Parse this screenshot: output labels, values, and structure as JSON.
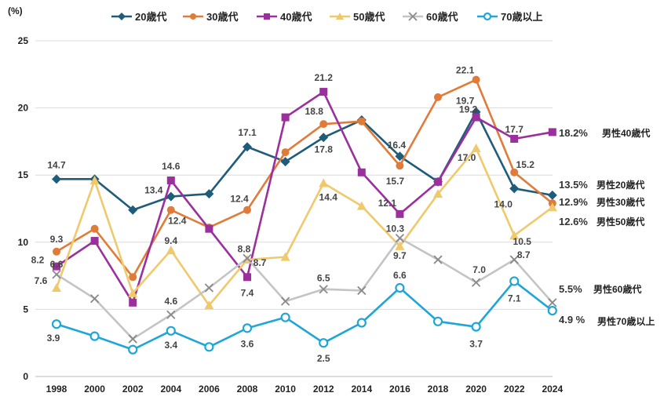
{
  "chart_data": {
    "type": "line",
    "y_unit_label": "(%)",
    "ylim": [
      0,
      25
    ],
    "yticks": [
      0,
      5,
      10,
      15,
      20,
      25
    ],
    "grid": "horizontal",
    "legend_position": "top",
    "x": [
      "1998",
      "2000",
      "2002",
      "2004",
      "2006",
      "2008",
      "2010",
      "2012",
      "2014",
      "2016",
      "2018",
      "2020",
      "2022",
      "2024"
    ],
    "series": [
      {
        "name": "20歳代",
        "color": "#1f5c7a",
        "marker": "diamond",
        "values": [
          14.7,
          14.7,
          12.4,
          13.4,
          13.6,
          17.1,
          16.0,
          17.8,
          19.1,
          16.4,
          14.5,
          19.7,
          14.0,
          13.5
        ],
        "end_label": "13.5%",
        "end_suffix": "男性20歳代"
      },
      {
        "name": "30歳代",
        "color": "#e07b39",
        "marker": "circle",
        "values": [
          9.3,
          11.0,
          7.4,
          12.4,
          11.1,
          12.4,
          16.7,
          18.8,
          19.0,
          15.7,
          20.8,
          22.1,
          15.2,
          12.9
        ],
        "end_label": "12.9%",
        "end_suffix": "男性30歳代"
      },
      {
        "name": "40歳代",
        "color": "#9b2f9e",
        "marker": "square",
        "values": [
          8.2,
          10.1,
          5.5,
          14.6,
          11.0,
          7.4,
          19.3,
          21.2,
          15.2,
          12.1,
          14.5,
          19.3,
          17.7,
          18.2
        ],
        "end_label": "18.2%",
        "end_suffix": "男性40歳代"
      },
      {
        "name": "50歳代",
        "color": "#efc96b",
        "marker": "triangle",
        "values": [
          6.6,
          14.6,
          6.2,
          9.4,
          5.3,
          8.7,
          8.9,
          14.4,
          12.7,
          9.7,
          13.6,
          17.0,
          10.5,
          12.6
        ],
        "end_label": "12.6%",
        "end_suffix": "男性50歳代"
      },
      {
        "name": "60歳代",
        "color": "#c4c4c4",
        "marker": "x",
        "values": [
          7.6,
          5.8,
          2.8,
          4.6,
          6.6,
          8.8,
          5.6,
          6.5,
          6.4,
          10.3,
          8.7,
          7.0,
          8.7,
          5.5
        ],
        "end_label": "5.5%",
        "end_suffix": "男性60歳代"
      },
      {
        "name": "70歳以上",
        "color": "#1ea6d6",
        "marker": "circle-open",
        "values": [
          3.9,
          3.0,
          2.0,
          3.4,
          2.2,
          3.6,
          4.4,
          2.5,
          4.0,
          6.6,
          4.1,
          3.7,
          7.1,
          4.9
        ],
        "end_label": "4.9 %",
        "end_suffix": "男性70歳以上"
      }
    ],
    "annotations": [
      {
        "series": "20歳代",
        "x": "1998",
        "text": "14.7"
      },
      {
        "series": "20歳代",
        "x": "2004",
        "text": "13.4"
      },
      {
        "series": "20歳代",
        "x": "2008",
        "text": "17.1"
      },
      {
        "series": "20歳代",
        "x": "2012",
        "text": "17.8"
      },
      {
        "series": "20歳代",
        "x": "2016",
        "text": "16.4"
      },
      {
        "series": "20歳代",
        "x": "2020",
        "text": "19.7"
      },
      {
        "series": "20歳代",
        "x": "2022",
        "text": "14.0"
      },
      {
        "series": "30歳代",
        "x": "1998",
        "text": "9.3"
      },
      {
        "series": "30歳代",
        "x": "2004",
        "text": "12.4"
      },
      {
        "series": "30歳代",
        "x": "2008",
        "text": "12.4"
      },
      {
        "series": "30歳代",
        "x": "2012",
        "text": "18.8"
      },
      {
        "series": "30歳代",
        "x": "2016",
        "text": "15.7"
      },
      {
        "series": "30歳代",
        "x": "2020",
        "text": "22.1"
      },
      {
        "series": "30歳代",
        "x": "2022",
        "text": "15.2"
      },
      {
        "series": "40歳代",
        "x": "1998",
        "text": "8.2"
      },
      {
        "series": "40歳代",
        "x": "2004",
        "text": "14.6"
      },
      {
        "series": "40歳代",
        "x": "2008",
        "text": "7.4"
      },
      {
        "series": "40歳代",
        "x": "2012",
        "text": "21.2"
      },
      {
        "series": "40歳代",
        "x": "2016",
        "text": "12.1"
      },
      {
        "series": "40歳代",
        "x": "2020",
        "text": "19.3"
      },
      {
        "series": "40歳代",
        "x": "2022",
        "text": "17.7"
      },
      {
        "series": "50歳代",
        "x": "1998",
        "text": "6.6"
      },
      {
        "series": "50歳代",
        "x": "2004",
        "text": "9.4"
      },
      {
        "series": "50歳代",
        "x": "2008",
        "text": "8.7"
      },
      {
        "series": "50歳代",
        "x": "2012",
        "text": "14.4"
      },
      {
        "series": "50歳代",
        "x": "2016",
        "text": "9.7"
      },
      {
        "series": "50歳代",
        "x": "2020",
        "text": "17.0"
      },
      {
        "series": "50歳代",
        "x": "2022",
        "text": "10.5"
      },
      {
        "series": "60歳代",
        "x": "1998",
        "text": "7.6"
      },
      {
        "series": "60歳代",
        "x": "2004",
        "text": "4.6"
      },
      {
        "series": "60歳代",
        "x": "2008",
        "text": "8.8"
      },
      {
        "series": "60歳代",
        "x": "2012",
        "text": "6.5"
      },
      {
        "series": "60歳代",
        "x": "2016",
        "text": "10.3"
      },
      {
        "series": "60歳代",
        "x": "2020",
        "text": "7.0"
      },
      {
        "series": "60歳代",
        "x": "2022",
        "text": "8.7"
      },
      {
        "series": "70歳以上",
        "x": "1998",
        "text": "3.9"
      },
      {
        "series": "70歳以上",
        "x": "2004",
        "text": "3.4"
      },
      {
        "series": "70歳以上",
        "x": "2008",
        "text": "3.6"
      },
      {
        "series": "70歳以上",
        "x": "2012",
        "text": "2.5"
      },
      {
        "series": "70歳以上",
        "x": "2016",
        "text": "6.6"
      },
      {
        "series": "70歳以上",
        "x": "2020",
        "text": "3.7"
      },
      {
        "series": "70歳以上",
        "x": "2022",
        "text": "7.1"
      }
    ]
  }
}
